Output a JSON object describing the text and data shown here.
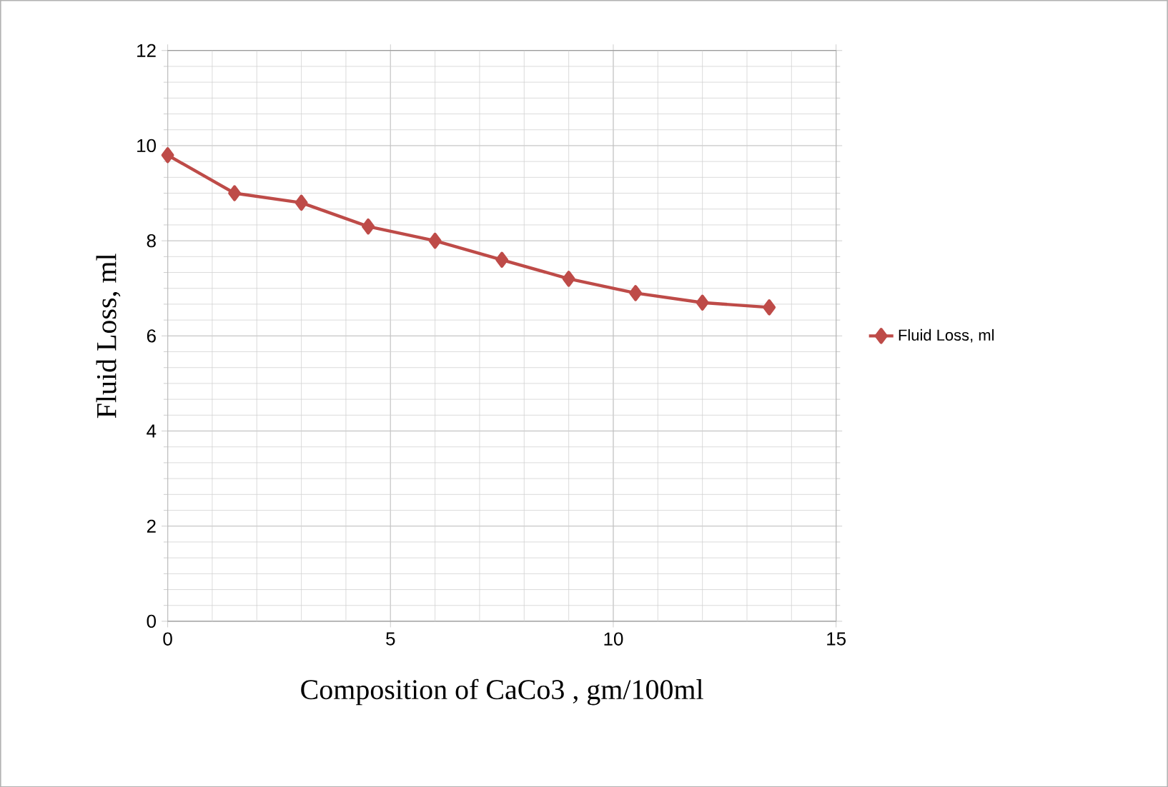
{
  "chart_data": {
    "type": "line",
    "xlabel": "Composition of CaCo3 , gm/100ml",
    "ylabel": "Fluid Loss, ml",
    "x": [
      0,
      1.5,
      3,
      4.5,
      6,
      7.5,
      9,
      10.5,
      12,
      13.5
    ],
    "series": [
      {
        "name": "Fluid Loss, ml",
        "color": "#be4b48",
        "values": [
          9.8,
          9.0,
          8.8,
          8.3,
          8.0,
          7.6,
          7.2,
          6.9,
          6.7,
          6.6
        ]
      }
    ],
    "xlim": [
      0,
      15
    ],
    "xticks": [
      0,
      5,
      10,
      15
    ],
    "ylim": [
      0,
      12
    ],
    "yticks": [
      0,
      2,
      4,
      6,
      8,
      10,
      12
    ],
    "grid": true,
    "legend": "right",
    "marker": "diamond",
    "line_style": "solid"
  }
}
